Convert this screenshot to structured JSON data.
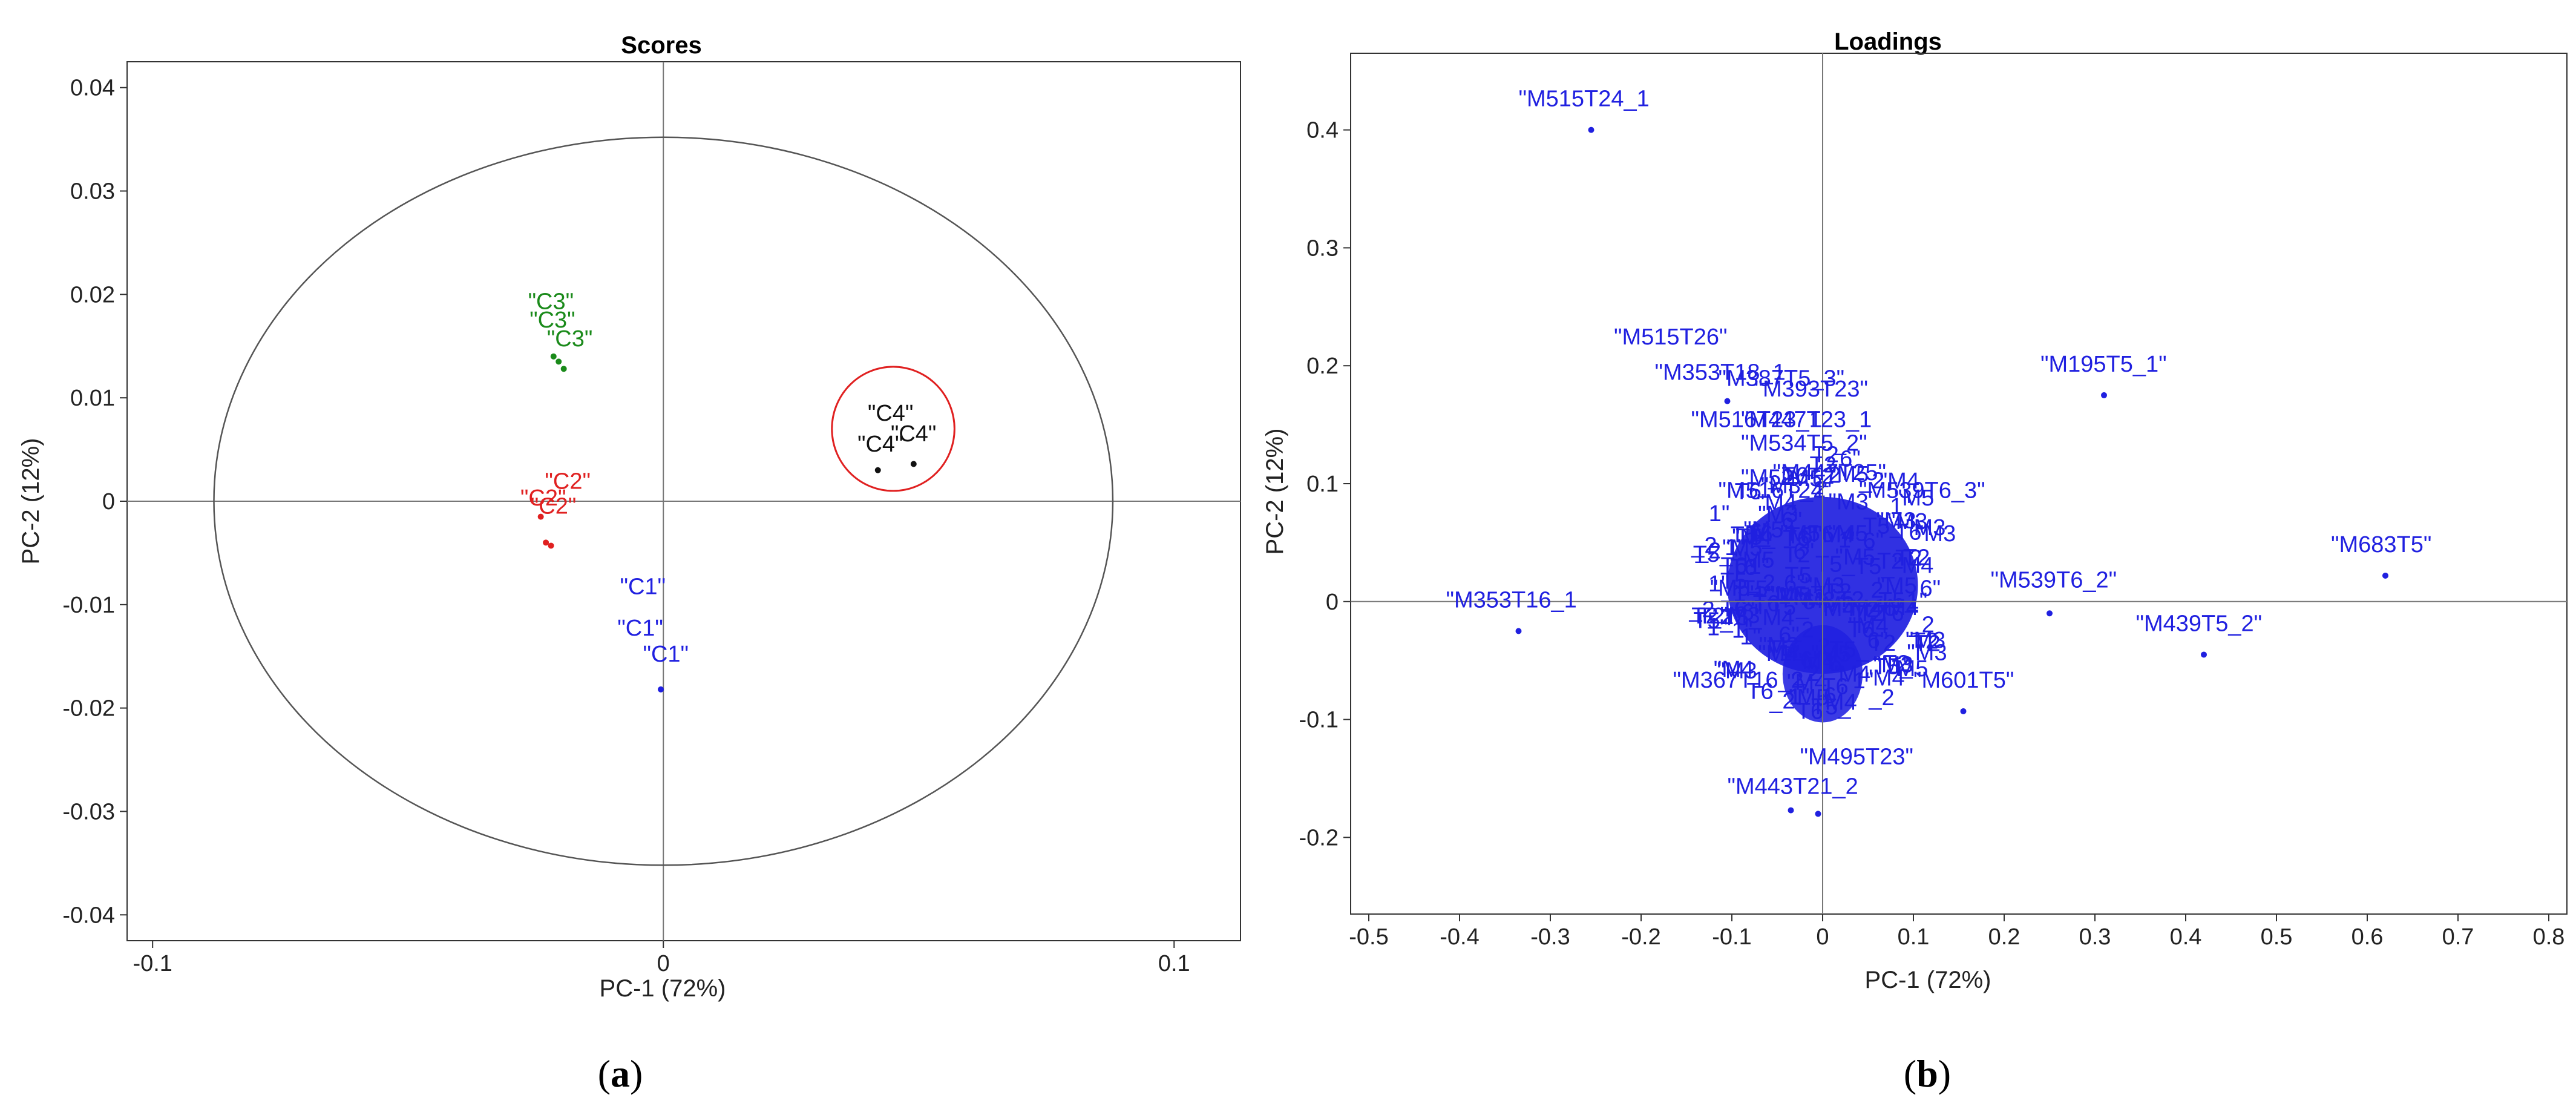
{
  "chart_data": [
    {
      "type": "scatter",
      "panel": "(a)",
      "panel_letter": "a",
      "title": "Scores",
      "xlabel": "PC-1 (72%)",
      "ylabel": "PC-2 (12%)",
      "xlim": [
        -0.105,
        0.113
      ],
      "ylim": [
        -0.0425,
        0.0425
      ],
      "xticks": [
        -0.1,
        0,
        0.1
      ],
      "xtick_labels": [
        "-0.1",
        "0",
        "0.1"
      ],
      "yticks": [
        0.04,
        0.03,
        0.02,
        0.01,
        0,
        -0.01,
        -0.02,
        -0.03,
        -0.04
      ],
      "ytick_labels": [
        "0.04",
        "0.03",
        "0.02",
        "0.01",
        "0",
        "-0.01",
        "-0.02",
        "-0.03",
        "-0.04"
      ],
      "hotelling_ellipse": {
        "center": [
          0,
          0
        ],
        "rx": 0.088,
        "ry": 0.0352,
        "color": "#555555"
      },
      "highlight_circle": {
        "center": [
          0.045,
          0.007
        ],
        "rx": 0.012,
        "ry": 0.006,
        "color": "#e02020"
      },
      "points": [
        {
          "x": -0.0215,
          "y": 0.014,
          "color": "#1a8a1a"
        },
        {
          "x": -0.0205,
          "y": 0.0135,
          "color": "#1a8a1a"
        },
        {
          "x": -0.0195,
          "y": 0.0128,
          "color": "#1a8a1a"
        },
        {
          "x": -0.024,
          "y": -0.0015,
          "color": "#e02020"
        },
        {
          "x": -0.023,
          "y": -0.004,
          "color": "#e02020"
        },
        {
          "x": -0.022,
          "y": -0.0043,
          "color": "#e02020"
        },
        {
          "x": -0.0005,
          "y": -0.0182,
          "color": "#2020e0"
        },
        {
          "x": 0.042,
          "y": 0.003,
          "color": "#111111"
        },
        {
          "x": 0.049,
          "y": 0.0036,
          "color": "#111111"
        }
      ],
      "labels": [
        {
          "text": "\"C3\"",
          "x": -0.0265,
          "y": 0.0186,
          "color": "#1a8a1a"
        },
        {
          "text": "\"C3\"",
          "x": -0.0262,
          "y": 0.0168,
          "color": "#1a8a1a"
        },
        {
          "text": "\"C3\"",
          "x": -0.0228,
          "y": 0.015,
          "color": "#1a8a1a"
        },
        {
          "text": "\"C2\"",
          "x": -0.0232,
          "y": 0.0012,
          "color": "#e02020"
        },
        {
          "text": "\"C2\"",
          "x": -0.028,
          "y": -0.0004,
          "color": "#e02020"
        },
        {
          "text": "\"C2\"",
          "x": -0.026,
          "y": -0.0012,
          "color": "#e02020"
        },
        {
          "text": "\"C1\"",
          "x": -0.0085,
          "y": -0.009,
          "color": "#2020e0"
        },
        {
          "text": "\"C1\"",
          "x": -0.009,
          "y": -0.013,
          "color": "#2020e0"
        },
        {
          "text": "\"C1\"",
          "x": -0.004,
          "y": -0.0155,
          "color": "#2020e0"
        },
        {
          "text": "\"C4\"",
          "x": 0.04,
          "y": 0.0078,
          "color": "#111111"
        },
        {
          "text": "\"C4\"",
          "x": 0.038,
          "y": 0.0048,
          "color": "#111111"
        },
        {
          "text": "\"C4\"",
          "x": 0.0445,
          "y": 0.0058,
          "color": "#111111"
        }
      ]
    },
    {
      "type": "scatter",
      "panel": "(b)",
      "panel_letter": "b",
      "title": "Loadings",
      "xlabel": "PC-1 (72%)",
      "ylabel": "PC-2 (12%)",
      "xlim": [
        -0.52,
        0.82
      ],
      "ylim": [
        -0.265,
        0.465
      ],
      "xticks": [
        -0.5,
        -0.4,
        -0.3,
        -0.2,
        -0.1,
        0,
        0.1,
        0.2,
        0.3,
        0.4,
        0.5,
        0.6,
        0.7,
        0.8
      ],
      "xtick_labels": [
        "-0.5",
        "-0.4",
        "-0.3",
        "-0.2",
        "-0.1",
        "0",
        "0.1",
        "0.2",
        "0.3",
        "0.4",
        "0.5",
        "0.6",
        "0.7",
        "0.8"
      ],
      "yticks": [
        0.4,
        0.3,
        0.2,
        0.1,
        0,
        -0.1,
        -0.2
      ],
      "ytick_labels": [
        "0.4",
        "0.3",
        "0.2",
        "0.1",
        "0",
        "-0.1",
        "-0.2"
      ],
      "color": "#2020e0",
      "points": [
        {
          "x": -0.255,
          "y": 0.4
        },
        {
          "x": -0.335,
          "y": -0.025
        },
        {
          "x": 0.31,
          "y": 0.175
        },
        {
          "x": 0.62,
          "y": 0.022
        },
        {
          "x": 0.42,
          "y": -0.045
        },
        {
          "x": 0.25,
          "y": -0.01
        },
        {
          "x": 0.155,
          "y": -0.093
        },
        {
          "x": -0.105,
          "y": 0.17
        },
        {
          "x": -0.035,
          "y": -0.177
        },
        {
          "x": -0.005,
          "y": -0.18
        }
      ],
      "labels": [
        {
          "text": "\"M515T24_1",
          "x": -0.335,
          "y": 0.42
        },
        {
          "text": "\"M515T26\"",
          "x": -0.23,
          "y": 0.218
        },
        {
          "text": "\"M353T18_1",
          "x": -0.185,
          "y": 0.188
        },
        {
          "text": "\"M387T5_3\"",
          "x": -0.115,
          "y": 0.183
        },
        {
          "text": "\"M393T23\"",
          "x": -0.075,
          "y": 0.174
        },
        {
          "text": "\"M195T5_1\"",
          "x": 0.24,
          "y": 0.195
        },
        {
          "text": "\"M516T23_1",
          "x": -0.145,
          "y": 0.148
        },
        {
          "text": "\"M447T23_1",
          "x": -0.09,
          "y": 0.148
        },
        {
          "text": "\"M534T5_2\"",
          "x": -0.09,
          "y": 0.128
        },
        {
          "text": "\"M447T25\"",
          "x": -0.055,
          "y": 0.103
        },
        {
          "text": "\"M516T24\"",
          "x": -0.115,
          "y": 0.088
        },
        {
          "text": "\"M539T6_3\"",
          "x": 0.04,
          "y": 0.088
        },
        {
          "text": "\"M683T5\"",
          "x": 0.56,
          "y": 0.042
        },
        {
          "text": "\"M539T6_2\"",
          "x": 0.185,
          "y": 0.012
        },
        {
          "text": "\"M353T16_1",
          "x": -0.415,
          "y": -0.005
        },
        {
          "text": "\"M439T5_2\"",
          "x": 0.345,
          "y": -0.025
        },
        {
          "text": "\"M601T5\"",
          "x": 0.1,
          "y": -0.073
        },
        {
          "text": "\"M367T16_2",
          "x": -0.165,
          "y": -0.073
        },
        {
          "text": "\"M495T23\"",
          "x": -0.025,
          "y": -0.138
        },
        {
          "text": "\"M443T21_2",
          "x": -0.105,
          "y": -0.163
        }
      ]
    }
  ]
}
